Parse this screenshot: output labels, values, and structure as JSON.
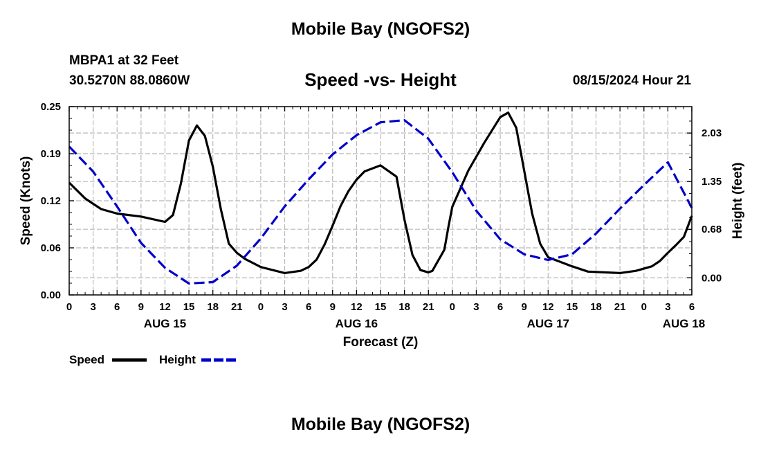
{
  "header": {
    "title": "Mobile Bay (NGOFS2)",
    "station": "MBPA1 at 32 Feet",
    "coords": "30.5270N  88.0860W",
    "timestamp": "08/15/2024 Hour 21",
    "footer_title": "Mobile Bay (NGOFS2)"
  },
  "chart_data": {
    "type": "line",
    "title": "Speed -vs- Height",
    "xlabel": "Forecast (Z)",
    "ylabel": "Speed (Knots)",
    "y2label": "Height (feet)",
    "xlim": [
      0,
      78
    ],
    "ylim": [
      0,
      0.25
    ],
    "y2lim": [
      -0.24,
      2.4
    ],
    "y_ticks": [
      "0.00",
      "0.06",
      "0.12",
      "0.19",
      "0.25"
    ],
    "y2_ticks": [
      "0.00",
      "0.68",
      "1.35",
      "2.03"
    ],
    "x_tick_labels": [
      "0",
      "3",
      "6",
      "9",
      "12",
      "15",
      "18",
      "21",
      "0",
      "3",
      "6",
      "9",
      "12",
      "15",
      "18",
      "21",
      "0",
      "3",
      "6",
      "9",
      "12",
      "15",
      "18",
      "21",
      "0",
      "3",
      "6"
    ],
    "date_labels": [
      {
        "label": "AUG 15",
        "x": 12
      },
      {
        "label": "AUG 16",
        "x": 36
      },
      {
        "label": "AUG 17",
        "x": 60
      },
      {
        "label": "AUG 18",
        "x": 77
      }
    ],
    "legend": {
      "position": "bottom-left",
      "speed_label": "Speed",
      "height_label": "Height"
    },
    "colors": {
      "speed": "#000000",
      "height": "#0000cc"
    },
    "series": [
      {
        "name": "Speed",
        "axis": "left",
        "style": "solid",
        "x": [
          0,
          2,
          4,
          6,
          9,
          12,
          13,
          14,
          15,
          16,
          17,
          18,
          19,
          20,
          21,
          22,
          24,
          27,
          29,
          30,
          31,
          32,
          33,
          34,
          35,
          36,
          37,
          39,
          41,
          42,
          43,
          44,
          45,
          45.5,
          47,
          47.5,
          48,
          50,
          52,
          54,
          55,
          56,
          57,
          58,
          59,
          60,
          63,
          65,
          69,
          71,
          73,
          74,
          75,
          76,
          77,
          78
        ],
        "values": [
          0.149,
          0.128,
          0.114,
          0.108,
          0.104,
          0.097,
          0.106,
          0.148,
          0.205,
          0.225,
          0.211,
          0.17,
          0.114,
          0.068,
          0.056,
          0.048,
          0.037,
          0.029,
          0.032,
          0.037,
          0.047,
          0.067,
          0.092,
          0.118,
          0.138,
          0.153,
          0.164,
          0.172,
          0.157,
          0.1,
          0.053,
          0.033,
          0.03,
          0.032,
          0.06,
          0.09,
          0.117,
          0.165,
          0.202,
          0.236,
          0.242,
          0.222,
          0.165,
          0.108,
          0.068,
          0.05,
          0.038,
          0.031,
          0.029,
          0.032,
          0.038,
          0.045,
          0.056,
          0.066,
          0.077,
          0.105
        ]
      },
      {
        "name": "Height",
        "axis": "right",
        "style": "dashed",
        "x": [
          0,
          3,
          6,
          9,
          12,
          15,
          18,
          21,
          24,
          27,
          30,
          33,
          36,
          39,
          42,
          45,
          48,
          51,
          54,
          57,
          60,
          63,
          66,
          69,
          72,
          75,
          78
        ],
        "values": [
          1.84,
          1.49,
          1.0,
          0.49,
          0.14,
          -0.08,
          -0.06,
          0.17,
          0.55,
          1.0,
          1.38,
          1.73,
          2.0,
          2.18,
          2.21,
          1.95,
          1.48,
          0.94,
          0.54,
          0.33,
          0.25,
          0.33,
          0.62,
          0.97,
          1.3,
          1.62,
          0.98
        ]
      }
    ]
  }
}
